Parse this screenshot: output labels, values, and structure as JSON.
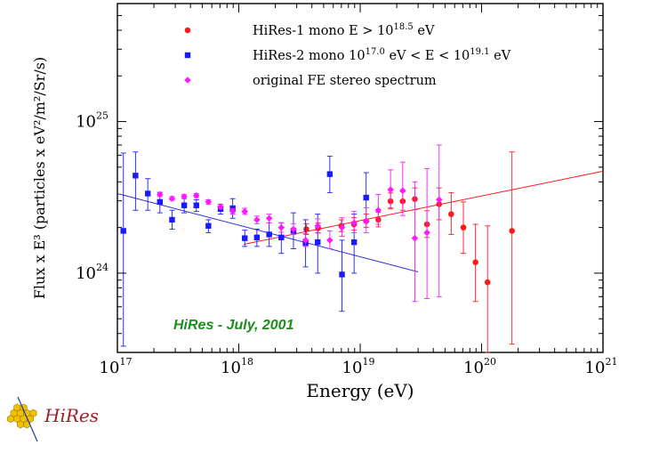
{
  "chart_data": {
    "type": "scatter",
    "title": "",
    "xlabel": "Energy (eV)",
    "ylabel": "Flux x E³ (particles x eV²/m²/Sr/s)",
    "x_scale": "log",
    "y_scale": "log",
    "xlim": [
      1e+17,
      1e+21
    ],
    "ylim": [
      3e+23,
      6e+25
    ],
    "x_ticks": [
      {
        "value": 1e+17,
        "base": "10",
        "exp": "17"
      },
      {
        "value": 1e+18,
        "base": "10",
        "exp": "18"
      },
      {
        "value": 1e+19,
        "base": "10",
        "exp": "19"
      },
      {
        "value": 1e+20,
        "base": "10",
        "exp": "20"
      },
      {
        "value": 1e+21,
        "base": "10",
        "exp": "21"
      }
    ],
    "y_ticks": [
      {
        "value": 1e+24,
        "base": "10",
        "exp": "24"
      },
      {
        "value": 1e+25,
        "base": "10",
        "exp": "25"
      }
    ],
    "grid": false,
    "legend_position": "top",
    "annotation": "HiRes - July, 2001",
    "annotation_color": "#1e8c1e",
    "logo_text": "HiRes",
    "logo_color": "#a0202a",
    "series": [
      {
        "name": "HiRes-1 mono E > 10^18.5 eV",
        "legend": [
          {
            "t": "HiRes-1 mono E > 10"
          },
          {
            "t": "18.5",
            "sup": true
          },
          {
            "t": " eV"
          }
        ],
        "color": "#ff1a1a",
        "marker": "circle",
        "points": [
          {
            "x": 3.6e+18,
            "y": 1.95e+24,
            "lo": 1.8e+24,
            "hi": 2.12e+24
          },
          {
            "x": 4.5e+18,
            "y": 1.98e+24,
            "lo": 1.84e+24,
            "hi": 2.14e+24
          },
          {
            "x": 7e+18,
            "y": 2.05e+24,
            "lo": 1.88e+24,
            "hi": 2.25e+24
          },
          {
            "x": 8.9e+18,
            "y": 2.1e+24,
            "lo": 1.92e+24,
            "hi": 2.32e+24
          },
          {
            "x": 1.12e+19,
            "y": 2.2e+24,
            "lo": 2e+24,
            "hi": 2.45e+24
          },
          {
            "x": 1.41e+19,
            "y": 2.25e+24,
            "lo": 2.02e+24,
            "hi": 2.52e+24
          },
          {
            "x": 1.78e+19,
            "y": 2.98e+24,
            "lo": 2.65e+24,
            "hi": 3.38e+24
          },
          {
            "x": 2.24e+19,
            "y": 2.98e+24,
            "lo": 2.6e+24,
            "hi": 3.45e+24
          },
          {
            "x": 2.82e+19,
            "y": 3.08e+24,
            "lo": 2.62e+24,
            "hi": 3.65e+24
          },
          {
            "x": 3.55e+19,
            "y": 2.1e+24,
            "lo": 1.72e+24,
            "hi": 2.58e+24
          },
          {
            "x": 4.47e+19,
            "y": 2.85e+24,
            "lo": 2.25e+24,
            "hi": 3.65e+24
          },
          {
            "x": 5.62e+19,
            "y": 2.45e+24,
            "lo": 1.8e+24,
            "hi": 3.4e+24
          },
          {
            "x": 7.08e+19,
            "y": 2e+24,
            "lo": 1.35e+24,
            "hi": 2.95e+24
          },
          {
            "x": 8.91e+19,
            "y": 1.18e+24,
            "lo": 6.5e+23,
            "hi": 2.1e+24
          },
          {
            "x": 1.12e+20,
            "y": 8.7e+23,
            "lo": 3e+23,
            "hi": 2.05e+24
          },
          {
            "x": 1.78e+20,
            "y": 1.9e+24,
            "lo": 3.4e+23,
            "hi": 6.3e+24
          }
        ]
      },
      {
        "name": "HiRes-2 mono 10^17.0 eV < E < 10^19.1 eV",
        "legend": [
          {
            "t": "HiRes-2 mono 10"
          },
          {
            "t": "17.0",
            "sup": true
          },
          {
            "t": " eV < E < 10"
          },
          {
            "t": "19.1",
            "sup": true
          },
          {
            "t": " eV"
          }
        ],
        "color": "#1a1aff",
        "marker": "square",
        "points": [
          {
            "x": 1.12e+17,
            "y": 1.9e+24,
            "lo": 3.3e+23,
            "hi": 6.2e+24
          },
          {
            "x": 1.41e+17,
            "y": 4.4e+24,
            "lo": 2.6e+24,
            "hi": 6.3e+24
          },
          {
            "x": 1.78e+17,
            "y": 3.35e+24,
            "lo": 2.6e+24,
            "hi": 4.2e+24
          },
          {
            "x": 2.24e+17,
            "y": 2.95e+24,
            "lo": 2.5e+24,
            "hi": 3.4e+24
          },
          {
            "x": 2.82e+17,
            "y": 2.25e+24,
            "lo": 1.95e+24,
            "hi": 2.6e+24
          },
          {
            "x": 3.55e+17,
            "y": 2.8e+24,
            "lo": 2.5e+24,
            "hi": 3.1e+24
          },
          {
            "x": 4.47e+17,
            "y": 2.8e+24,
            "lo": 2.55e+24,
            "hi": 3.05e+24
          },
          {
            "x": 5.62e+17,
            "y": 2.05e+24,
            "lo": 1.85e+24,
            "hi": 2.25e+24
          },
          {
            "x": 7.08e+17,
            "y": 2.65e+24,
            "lo": 2.45e+24,
            "hi": 2.85e+24
          },
          {
            "x": 8.91e+17,
            "y": 2.68e+24,
            "lo": 2.3e+24,
            "hi": 3.1e+24
          },
          {
            "x": 1.12e+18,
            "y": 1.7e+24,
            "lo": 1.5e+24,
            "hi": 1.92e+24
          },
          {
            "x": 1.41e+18,
            "y": 1.72e+24,
            "lo": 1.5e+24,
            "hi": 1.95e+24
          },
          {
            "x": 1.78e+18,
            "y": 1.8e+24,
            "lo": 1.5e+24,
            "hi": 2.15e+24
          },
          {
            "x": 2.24e+18,
            "y": 1.72e+24,
            "lo": 1.35e+24,
            "hi": 2.15e+24
          },
          {
            "x": 2.82e+18,
            "y": 1.9e+24,
            "lo": 1.45e+24,
            "hi": 2.5e+24
          },
          {
            "x": 3.55e+18,
            "y": 1.58e+24,
            "lo": 1.1e+24,
            "hi": 2.25e+24
          },
          {
            "x": 4.47e+18,
            "y": 1.6e+24,
            "lo": 1e+24,
            "hi": 2.45e+24
          },
          {
            "x": 5.62e+18,
            "y": 4.5e+24,
            "lo": 3.4e+24,
            "hi": 5.9e+24
          },
          {
            "x": 7.08e+18,
            "y": 9.8e+23,
            "lo": 5.6e+23,
            "hi": 1.65e+24
          },
          {
            "x": 8.91e+18,
            "y": 1.6e+24,
            "lo": 1e+24,
            "hi": 2.45e+24
          },
          {
            "x": 1.12e+19,
            "y": 3.15e+24,
            "lo": 2.2e+24,
            "hi": 4.6e+24
          }
        ]
      },
      {
        "name": "original FE stereo spectrum",
        "legend": [
          {
            "t": "original FE stereo spectrum"
          }
        ],
        "color": "#ff1aff",
        "marker": "diamond",
        "points": [
          {
            "x": 2.24e+17,
            "y": 3.3e+24,
            "lo": 3.2e+24,
            "hi": 3.42e+24
          },
          {
            "x": 2.82e+17,
            "y": 3.1e+24,
            "lo": 3.02e+24,
            "hi": 3.2e+24
          },
          {
            "x": 3.55e+17,
            "y": 3.2e+24,
            "lo": 3.1e+24,
            "hi": 3.3e+24
          },
          {
            "x": 4.47e+17,
            "y": 3.25e+24,
            "lo": 3.15e+24,
            "hi": 3.35e+24
          },
          {
            "x": 5.62e+17,
            "y": 2.95e+24,
            "lo": 2.85e+24,
            "hi": 3.05e+24
          },
          {
            "x": 7.08e+17,
            "y": 2.75e+24,
            "lo": 2.65e+24,
            "hi": 2.85e+24
          },
          {
            "x": 8.91e+17,
            "y": 2.55e+24,
            "lo": 2.45e+24,
            "hi": 2.66e+24
          },
          {
            "x": 1.12e+18,
            "y": 2.55e+24,
            "lo": 2.44e+24,
            "hi": 2.68e+24
          },
          {
            "x": 1.41e+18,
            "y": 2.25e+24,
            "lo": 2.12e+24,
            "hi": 2.38e+24
          },
          {
            "x": 1.78e+18,
            "y": 2.3e+24,
            "lo": 2.15e+24,
            "hi": 2.45e+24
          },
          {
            "x": 2.24e+18,
            "y": 2e+24,
            "lo": 1.86e+24,
            "hi": 2.15e+24
          },
          {
            "x": 2.82e+18,
            "y": 1.95e+24,
            "lo": 1.8e+24,
            "hi": 2.12e+24
          },
          {
            "x": 3.55e+18,
            "y": 1.65e+24,
            "lo": 1.5e+24,
            "hi": 1.82e+24
          },
          {
            "x": 4.47e+18,
            "y": 2.05e+24,
            "lo": 1.85e+24,
            "hi": 2.28e+24
          },
          {
            "x": 5.62e+18,
            "y": 1.65e+24,
            "lo": 1.45e+24,
            "hi": 1.9e+24
          },
          {
            "x": 7.08e+18,
            "y": 2e+24,
            "lo": 1.75e+24,
            "hi": 2.32e+24
          },
          {
            "x": 8.91e+18,
            "y": 2.15e+24,
            "lo": 1.85e+24,
            "hi": 2.55e+24
          },
          {
            "x": 1.12e+19,
            "y": 2.2e+24,
            "lo": 1.85e+24,
            "hi": 2.7e+24
          },
          {
            "x": 1.41e+19,
            "y": 2.6e+24,
            "lo": 2.1e+24,
            "hi": 3.3e+24
          },
          {
            "x": 1.78e+19,
            "y": 3.55e+24,
            "lo": 2.7e+24,
            "hi": 4.8e+24
          },
          {
            "x": 2.24e+19,
            "y": 3.5e+24,
            "lo": 2.4e+24,
            "hi": 5.4e+24
          },
          {
            "x": 2.82e+19,
            "y": 1.7e+24,
            "lo": 6.5e+23,
            "hi": 4e+24
          },
          {
            "x": 3.55e+19,
            "y": 1.85e+24,
            "lo": 6.8e+23,
            "hi": 4.9e+24
          },
          {
            "x": 4.47e+19,
            "y": 3.05e+24,
            "lo": 7e+23,
            "hi": 7e+24
          }
        ]
      }
    ],
    "fit_lines": [
      {
        "color": "#ff1a1a",
        "x": [
          1.1e+18,
          1e+21
        ],
        "y": [
          1.55e+24,
          4.7e+24
        ]
      },
      {
        "color": "#3030dd",
        "x": [
          1e+17,
          3e+19
        ],
        "y": [
          3.35e+24,
          1.02e+24
        ]
      }
    ]
  }
}
